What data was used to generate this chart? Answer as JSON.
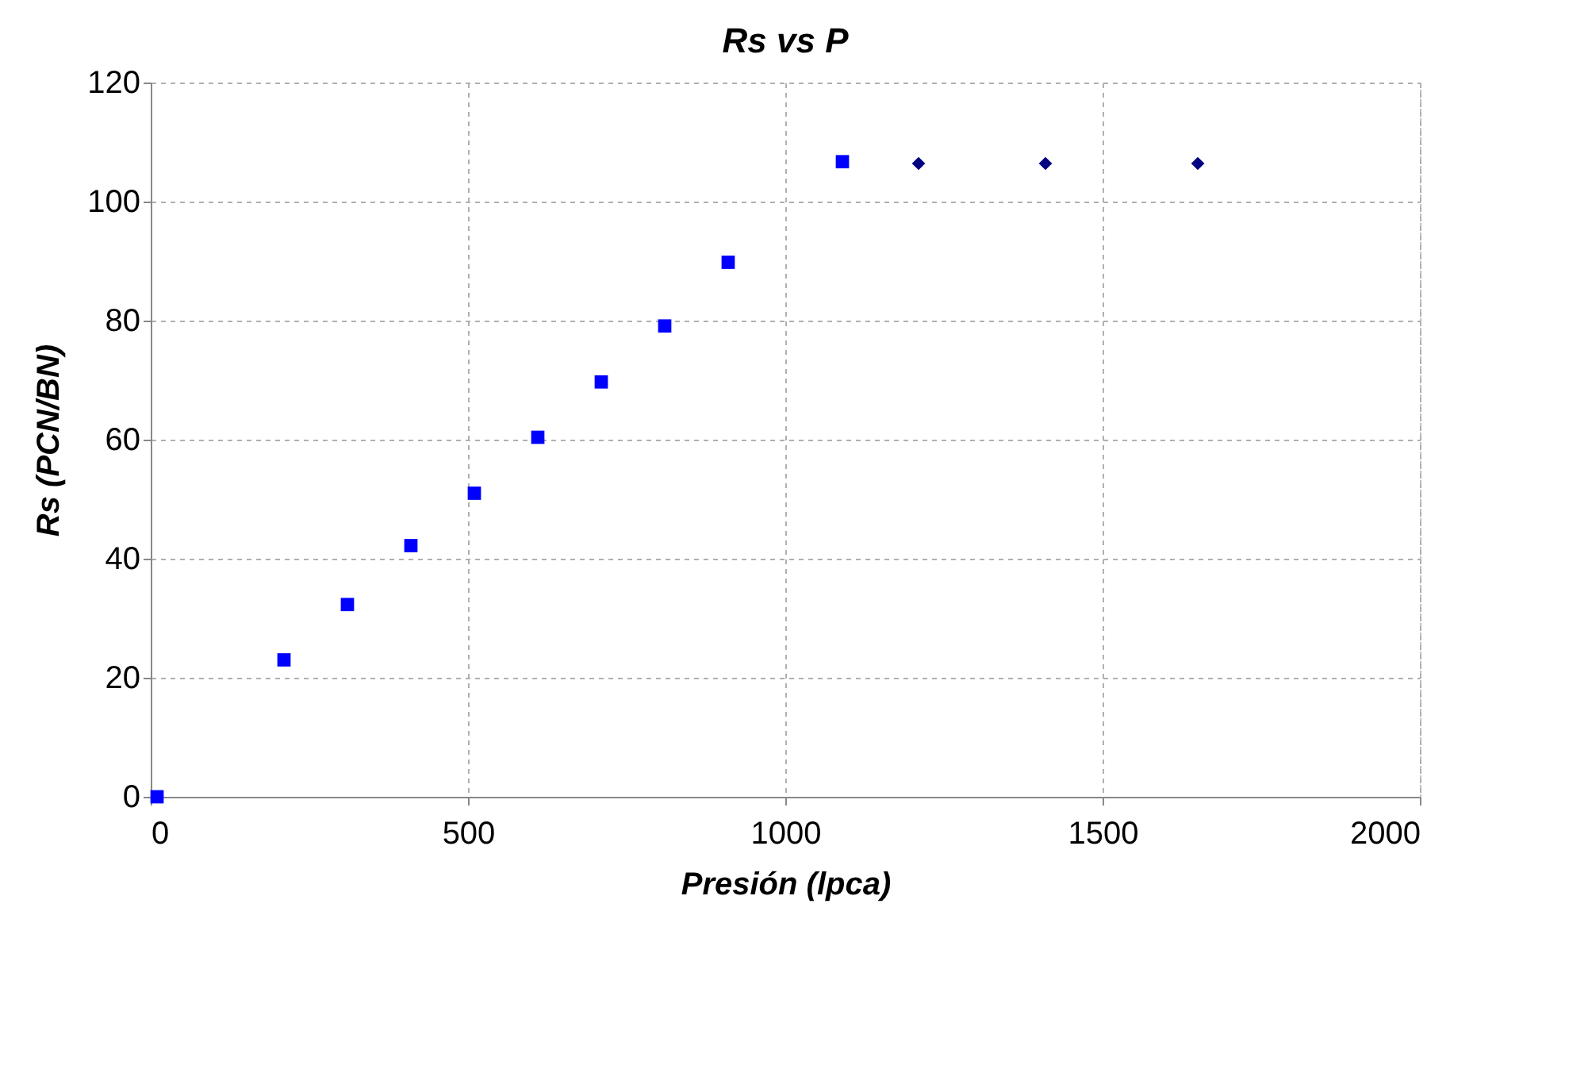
{
  "chart_data": {
    "type": "scatter",
    "title": "Rs vs P",
    "xlabel": "Presión (lpca)",
    "ylabel": "Rs  (PCN/BN)",
    "xlim": [
      0,
      2000
    ],
    "xticks": [
      0,
      500,
      1000,
      1500,
      2000
    ],
    "ylim": [
      0,
      120
    ],
    "yticks": [
      0,
      20,
      40,
      60,
      80,
      100,
      120
    ],
    "grid": true,
    "series": [
      {
        "color": "#0000ff",
        "marker": "square",
        "x": [
          10,
          210,
          310,
          410,
          510,
          610,
          710,
          810,
          910,
          1090
        ],
        "values": [
          0,
          23,
          32.3,
          42.2,
          51,
          60.4,
          69.7,
          79.1,
          89.8,
          106.7
        ]
      },
      {
        "color": "#000080",
        "marker": "diamond",
        "x": [
          1210,
          1410,
          1650
        ],
        "values": [
          106.4,
          106.4,
          106.4
        ]
      }
    ]
  }
}
